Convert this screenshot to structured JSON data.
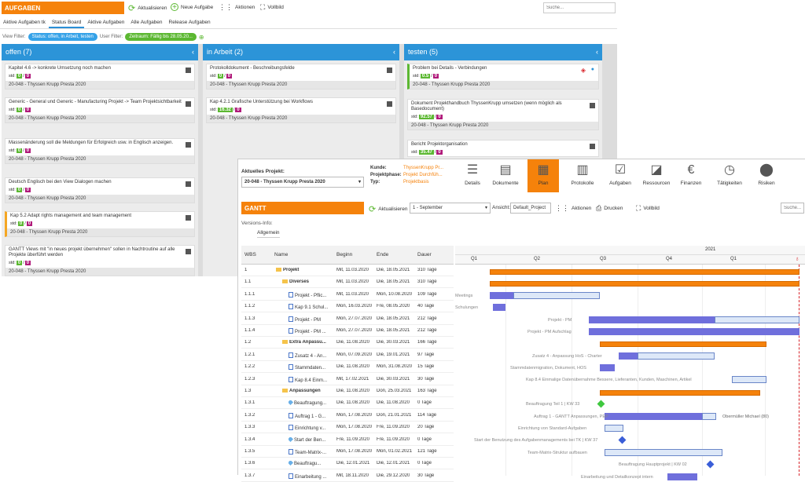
{
  "top": {
    "title": "AUFGABEN",
    "refresh": "Aktualisieren",
    "new_task": "Neue Aufgabe",
    "actions": "Aktionen",
    "fullscreen": "Vollbild",
    "search_placeholder": "Suche..."
  },
  "tabs": [
    "Aktive Aufgaben tk",
    "Status Board",
    "Aktive Aufgaben",
    "Alle Aufgaben",
    "Release Aufgaben"
  ],
  "filters": {
    "view_label": "View Filter:",
    "view_value": "Status: offen, in Arbeit, testen",
    "user_label": "User Filter:",
    "date_value": "Zeitraum: Fällig bis 28.05.20..."
  },
  "columns": [
    {
      "title": "offen (7)",
      "cards": [
        {
          "text": "Kapitel 4.6 -> konkrete Umsetzung noch machen",
          "v1": "0",
          "v2": "0",
          "proj": "20-048 - Thyssen Krupp Presta 2020"
        },
        {
          "text": "Generic - General und Generic - Manufacturing Projekt -> Team Projektsichtbarkeit",
          "v1": "0",
          "v2": "0",
          "proj": "20-048 - Thyssen Krupp Presta 2020"
        },
        {
          "text": "Massenänderung soll die Meldungen für Erfolgreich usw. in Englisch anzeigen.",
          "v1": "0",
          "v2": "0",
          "proj": "20-048 - Thyssen Krupp Presta 2020"
        },
        {
          "text": "Deutsch Englisch bei den View Dialogen machen",
          "v1": "0",
          "v2": "0",
          "proj": "20-048 - Thyssen Krupp Presta 2020"
        },
        {
          "text": "Kap 5.2 Adapt rights management and team management",
          "v1": "0",
          "v2": "0",
          "proj": "20-048 - Thyssen Krupp Presta 2020"
        },
        {
          "text": "GANTT Views mit \"in neues projekt übernehmen\" sollen in Nachtroutine auf alle Projekte überführt werden",
          "v1": "0",
          "v2": "0",
          "proj": "20-048 - Thyssen Krupp Presta 2020"
        }
      ]
    },
    {
      "title": "in Arbeit (2)",
      "cards": [
        {
          "text": "Protokolldokument - Beschreibungsfelde",
          "v1": "0",
          "v2": "0",
          "proj": "20-048 - Thyssen Krupp Presta 2020"
        },
        {
          "text": "Kap 4.2.1 Grafische Unterstützung bei Workflows",
          "v1": "16.32",
          "v2": "0",
          "proj": "20-048 - Thyssen Krupp Presta 2020"
        }
      ]
    },
    {
      "title": "testen (5)",
      "cards": [
        {
          "text": "Problem bei Details - Verbindungen",
          "v1": "0.5",
          "v2": "0",
          "proj": "20-048 - Thyssen Krupp Presta 2020"
        },
        {
          "text": "Dokument Projekthandbuch ThyssenKrupp umsetzen (wenn möglich als Basedocument)",
          "v1": "92.57",
          "v2": "0",
          "proj": "20-048 - Thyssen Krupp Presta 2020"
        },
        {
          "text": "Bericht Projektorganisation",
          "v1": "35.47",
          "v2": "0",
          "proj": ""
        }
      ]
    }
  ],
  "std_label": "std:",
  "gantt": {
    "project_label": "Aktuelles Projekt:",
    "project_value": "20-048 - Thyssen Krupp Presta 2020",
    "kunde_label": "Kunde:",
    "kunde_value": "ThyssenKrupp Pr...",
    "phase_label": "Projektphase:",
    "phase_value": "Projekt Durchfüh...",
    "typ_label": "Typ:",
    "typ_value": "Projektbasis",
    "ribbon": [
      "Details",
      "Dokumente",
      "Plan",
      "Protokolle",
      "Aufgaben",
      "Ressourcen",
      "Finanzen",
      "Tätigkeiten",
      "Risiken"
    ],
    "title": "GANTT",
    "refresh": "Aktualisieren",
    "period": "1 - September",
    "view_label": "Ansicht:",
    "view_value": "Default_Project",
    "actions": "Aktionen",
    "print": "Drucken",
    "fullscreen": "Vollbild",
    "search": "Suche...",
    "version_label": "Versions-Info:",
    "version_tab": "Allgemein",
    "headers": {
      "wbs": "WBS",
      "name": "Name",
      "start": "Beginn",
      "end": "Ende",
      "dur": "Dauer"
    },
    "year": "2021",
    "quarters": [
      "Q1",
      "Q2",
      "Q3",
      "Q4",
      "Q1"
    ],
    "rows": [
      {
        "wbs": "1",
        "name": "Projekt",
        "start": "Mit, 11.03.2020",
        "end": "Die, 18.05.2021",
        "dur": "310 Tage",
        "type": "folder",
        "bold": true
      },
      {
        "wbs": "1.1",
        "name": "Diverses",
        "start": "Mit, 11.03.2020",
        "end": "Die, 18.05.2021",
        "dur": "310 Tage",
        "type": "folder",
        "bold": true
      },
      {
        "wbs": "1.1.1",
        "name": "Projekt - Pflic...",
        "start": "Mit, 11.03.2020",
        "end": "Mon, 10.08.2020",
        "dur": "109 Tage",
        "type": "doc"
      },
      {
        "wbs": "1.1.2",
        "name": "Kap 9.1 Schul...",
        "start": "Mon, 16.03.2020",
        "end": "Fre, 08.05.2020",
        "dur": "40 Tage",
        "type": "doc"
      },
      {
        "wbs": "1.1.3",
        "name": "Projekt - PM",
        "start": "Mon, 27.07.2020",
        "end": "Die, 18.05.2021",
        "dur": "212 Tage",
        "type": "doc"
      },
      {
        "wbs": "1.1.4",
        "name": "Projekt - PM ...",
        "start": "Mon, 27.07.2020",
        "end": "Die, 18.05.2021",
        "dur": "212 Tage",
        "type": "doc"
      },
      {
        "wbs": "1.2",
        "name": "Extra Anpassu...",
        "start": "Die, 11.08.2020",
        "end": "Die, 30.03.2021",
        "dur": "166 Tage",
        "type": "folder",
        "bold": true
      },
      {
        "wbs": "1.2.1",
        "name": "Zusatz 4 - An...",
        "start": "Mon, 07.09.2020",
        "end": "Die, 19.01.2021",
        "dur": "97 Tage",
        "type": "doc"
      },
      {
        "wbs": "1.2.2",
        "name": "Stammdaten...",
        "start": "Die, 11.08.2020",
        "end": "Mon, 31.08.2020",
        "dur": "15 Tage",
        "type": "doc"
      },
      {
        "wbs": "1.2.3",
        "name": "Kap 8.4 Einm...",
        "start": "Mit, 17.02.2021",
        "end": "Die, 30.03.2021",
        "dur": "30 Tage",
        "type": "doc"
      },
      {
        "wbs": "1.3",
        "name": "Anpassungen",
        "start": "Die, 11.08.2020",
        "end": "Don, 25.03.2021",
        "dur": "163 Tage",
        "type": "folder",
        "bold": true
      },
      {
        "wbs": "1.3.1",
        "name": "Beauftragung...",
        "start": "Die, 11.08.2020",
        "end": "Die, 11.08.2020",
        "dur": "0 Tage",
        "type": "dia"
      },
      {
        "wbs": "1.3.2",
        "name": "Auftrag 1 - G...",
        "start": "Mon, 17.08.2020",
        "end": "Don, 21.01.2021",
        "dur": "114 Tage",
        "type": "doc"
      },
      {
        "wbs": "1.3.3",
        "name": "Einrichtung v...",
        "start": "Mon, 17.08.2020",
        "end": "Fre, 11.09.2020",
        "dur": "20 Tage",
        "type": "doc"
      },
      {
        "wbs": "1.3.4",
        "name": "Start der Ben...",
        "start": "Fre, 11.09.2020",
        "end": "Fre, 11.09.2020",
        "dur": "0 Tage",
        "type": "dia"
      },
      {
        "wbs": "1.3.5",
        "name": "Team-Matrix-...",
        "start": "Mon, 17.08.2020",
        "end": "Mon, 01.02.2021",
        "dur": "121 Tage",
        "type": "doc"
      },
      {
        "wbs": "1.3.6",
        "name": "Beauftragu...",
        "start": "Die, 12.01.2021",
        "end": "Die, 12.01.2021",
        "dur": "0 Tage",
        "type": "dia"
      },
      {
        "wbs": "1.3.7",
        "name": "Einarbeitung ...",
        "start": "Mit, 18.11.2020",
        "end": "Die, 29.12.2020",
        "dur": "30 Tage",
        "type": "doc"
      }
    ],
    "bar_labels": [
      "Meetings",
      "Schulungen",
      "Projekt - PM",
      "Projekt - PM Aufschlag",
      "Zusatz 4 - Anpassung HoS - Charter",
      "Stammdatenmigration, Dokument, HOS",
      "Kap 8.4 Einmalige Datenübernahme Bessere, Lieferanten, Kunden, Maschinen, Artikel",
      "Beauftragung Teil 1 | KW 33",
      "Auftrag 1 - GANTT Anpassungen, PEP",
      "Obermüller Michael (80)",
      "Einrichtung von Standard-Aufgaben",
      "Start der Benutzung des Aufgabenmanagements bei TK | KW 37",
      "Team-Matrix-Struktur aufbauen",
      "Beauftragung Hauptprojekt | KW 02",
      "Einarbeitung und Detailkonzept intern"
    ]
  }
}
